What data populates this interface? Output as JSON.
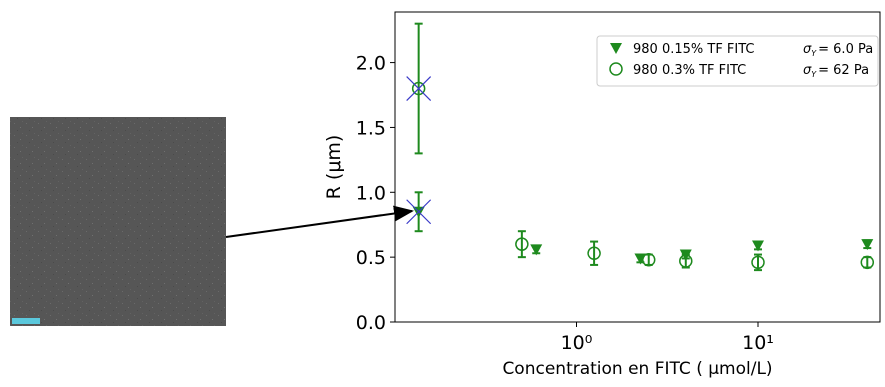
{
  "chart_data": {
    "type": "scatter",
    "y_label": "R (μm)",
    "x_label": "Concentration en FITC ( μmol/L)",
    "xscale": "log",
    "xlim": [
      0.1,
      47
    ],
    "ylim": [
      0,
      2.39
    ],
    "xticks": [
      {
        "value": 1,
        "label": "10⁰"
      },
      {
        "value": 10,
        "label": "10¹"
      }
    ],
    "yticks": [
      {
        "value": 0,
        "label": "0.0"
      },
      {
        "value": 0.5,
        "label": "0.5"
      },
      {
        "value": 1,
        "label": "1.0"
      },
      {
        "value": 1.5,
        "label": "1.5"
      },
      {
        "value": 2,
        "label": "2.0"
      }
    ],
    "legend": "upper right",
    "highlight_color": "#3a3ac8",
    "series": [
      {
        "name": "980  0.15% TF FITC",
        "marker": "triangle",
        "color": "#1e8a1e",
        "annotation": {
          "symbol": "σ",
          "subscript": "Y",
          "text": "= 6.0 Pa"
        },
        "x": [
          0.135,
          0.6,
          2.25,
          4,
          10,
          40
        ],
        "values": [
          0.85,
          0.56,
          0.49,
          0.52,
          0.59,
          0.6
        ],
        "errors": [
          0.15,
          0.03,
          0.03,
          0.03,
          0.03,
          0.03
        ]
      },
      {
        "name": "980  0.3% TF FITC",
        "marker": "circle",
        "color": "#1e8a1e",
        "annotation": {
          "symbol": "σ",
          "subscript": "Y",
          "text": "= 62 Pa"
        },
        "x": [
          0.135,
          0.5,
          1.25,
          2.5,
          4,
          10,
          40
        ],
        "values": [
          1.8,
          0.6,
          0.53,
          0.48,
          0.47,
          0.46,
          0.46
        ],
        "errors": [
          0.5,
          0.1,
          0.09,
          0.04,
          0.05,
          0.06,
          0.04
        ]
      }
    ]
  }
}
